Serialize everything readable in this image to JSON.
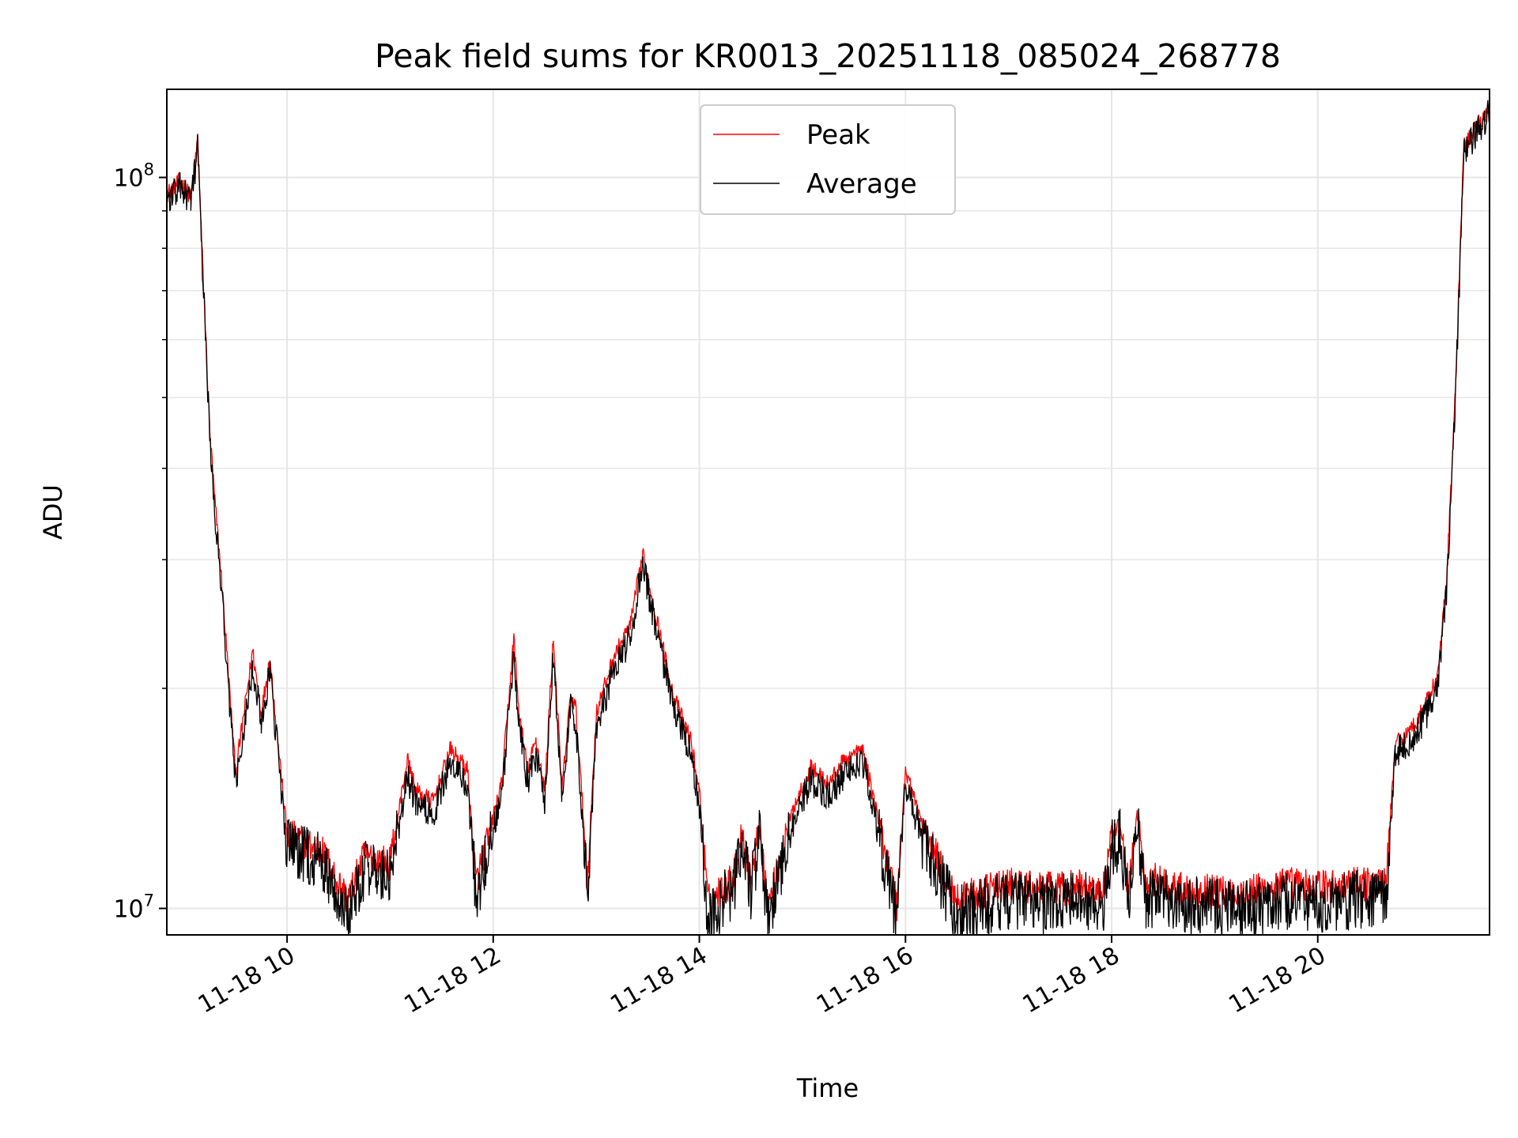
{
  "chart_data": {
    "type": "line",
    "title": "Peak field sums for KR0013_20251118_085024_268778",
    "xlabel": "Time",
    "ylabel": "ADU",
    "x_tick_labels": [
      "11-18 10",
      "11-18 12",
      "11-18 14",
      "11-18 16",
      "11-18 18",
      "11-18 20"
    ],
    "y_tick_labels": [
      {
        "label": "10",
        "exp": "8",
        "value": 100000000
      },
      {
        "label": "10",
        "exp": "7",
        "value": 10000000
      }
    ],
    "y_scale": "log",
    "ylim": [
      9200000,
      132000000
    ],
    "xlim": [
      "2025-11-18 08:50",
      "2025-11-18 21:40"
    ],
    "grid": true,
    "legend_position": "upper center",
    "series": [
      {
        "name": "Peak",
        "color": "#ff0000",
        "x": [
          "08:50",
          "08:58",
          "09:04",
          "09:08",
          "09:10",
          "09:15",
          "09:18",
          "09:22",
          "09:30",
          "09:40",
          "09:45",
          "09:50",
          "10:00",
          "10:20",
          "10:35",
          "10:37",
          "10:45",
          "11:00",
          "11:10",
          "11:15",
          "11:25",
          "11:35",
          "11:45",
          "11:50",
          "12:05",
          "12:12",
          "12:15",
          "12:20",
          "12:25",
          "12:30",
          "12:35",
          "12:40",
          "12:45",
          "12:48",
          "12:55",
          "13:00",
          "13:10",
          "13:20",
          "13:27",
          "13:35",
          "13:45",
          "13:55",
          "14:00",
          "14:05",
          "14:20",
          "14:25",
          "14:30",
          "14:35",
          "14:40",
          "14:55",
          "15:05",
          "15:15",
          "15:25",
          "15:35",
          "15:45",
          "15:50",
          "15:55",
          "16:00",
          "16:10",
          "16:20",
          "16:30",
          "16:45",
          "17:00",
          "17:15",
          "17:45",
          "17:55",
          "18:00",
          "18:05",
          "18:10",
          "18:15",
          "18:20",
          "18:25",
          "18:40",
          "19:15",
          "19:45",
          "20:00",
          "20:30",
          "20:40",
          "20:45",
          "20:50",
          "20:55",
          "21:00",
          "21:05",
          "21:10",
          "21:15",
          "21:20",
          "21:25",
          "21:40"
        ],
        "y": [
          95000000,
          99000000,
          94000000,
          113000000,
          85000000,
          45000000,
          36000000,
          28000000,
          15300000,
          22500000,
          18500000,
          22000000,
          12600000,
          12000000,
          10300000,
          10500000,
          11800000,
          11500000,
          16000000,
          14500000,
          14000000,
          16500000,
          15500000,
          10800000,
          14800000,
          23500000,
          18500000,
          15500000,
          17000000,
          14500000,
          23500000,
          14500000,
          19500000,
          18800000,
          11000000,
          18500000,
          22000000,
          24500000,
          30500000,
          25000000,
          19500000,
          17000000,
          14500000,
          10200000,
          11000000,
          12800000,
          11000000,
          13000000,
          10000000,
          13800000,
          15600000,
          14800000,
          16000000,
          16500000,
          13000000,
          11500000,
          10100000,
          15500000,
          13000000,
          11500000,
          10300000,
          10500000,
          10800000,
          10600000,
          10700000,
          10500000,
          12500000,
          13000000,
          10600000,
          13500000,
          10500000,
          11000000,
          10600000,
          10500000,
          10800000,
          10700000,
          10800000,
          11000000,
          16800000,
          17200000,
          17700000,
          18500000,
          19500000,
          21000000,
          28000000,
          50000000,
          110000000,
          125000000
        ]
      },
      {
        "name": "Average",
        "color": "#000000",
        "x": [
          "08:50",
          "08:58",
          "09:04",
          "09:08",
          "09:10",
          "09:15",
          "09:18",
          "09:22",
          "09:30",
          "09:40",
          "09:45",
          "09:50",
          "10:00",
          "10:20",
          "10:35",
          "10:37",
          "10:45",
          "11:00",
          "11:10",
          "11:15",
          "11:25",
          "11:35",
          "11:45",
          "11:50",
          "12:05",
          "12:12",
          "12:15",
          "12:20",
          "12:25",
          "12:30",
          "12:35",
          "12:40",
          "12:45",
          "12:48",
          "12:55",
          "13:00",
          "13:10",
          "13:20",
          "13:27",
          "13:35",
          "13:45",
          "13:55",
          "14:00",
          "14:05",
          "14:20",
          "14:25",
          "14:30",
          "14:35",
          "14:40",
          "14:55",
          "15:05",
          "15:15",
          "15:25",
          "15:35",
          "15:45",
          "15:50",
          "15:55",
          "16:00",
          "16:10",
          "16:20",
          "16:30",
          "16:45",
          "17:00",
          "17:15",
          "17:45",
          "17:55",
          "18:00",
          "18:05",
          "18:10",
          "18:15",
          "18:20",
          "18:25",
          "18:40",
          "19:15",
          "19:45",
          "20:00",
          "20:30",
          "20:40",
          "20:45",
          "20:50",
          "20:55",
          "21:00",
          "21:05",
          "21:10",
          "21:15",
          "21:20",
          "21:25",
          "21:40"
        ],
        "y": [
          93000000,
          97000000,
          92000000,
          110000000,
          83000000,
          44000000,
          35000000,
          27000000,
          14800000,
          21500000,
          18000000,
          21000000,
          12100000,
          11500000,
          9900000,
          10100000,
          11300000,
          11000000,
          15200000,
          13900000,
          13400000,
          15800000,
          14800000,
          10400000,
          14200000,
          22500000,
          17800000,
          14900000,
          16300000,
          14000000,
          22500000,
          14000000,
          18800000,
          18000000,
          10600000,
          17800000,
          21000000,
          23500000,
          29500000,
          24000000,
          18700000,
          16300000,
          13900000,
          9700000,
          10600000,
          12300000,
          10500000,
          12500000,
          9600000,
          13200000,
          15000000,
          14200000,
          15400000,
          15900000,
          12400000,
          11000000,
          9700000,
          14900000,
          12400000,
          11000000,
          9800000,
          10000000,
          10300000,
          10100000,
          10200000,
          10000000,
          12000000,
          12500000,
          10100000,
          13000000,
          10000000,
          10500000,
          10100000,
          9900000,
          10300000,
          10200000,
          10300000,
          10500000,
          16200000,
          16600000,
          17100000,
          17800000,
          18800000,
          20300000,
          27000000,
          48500000,
          108000000,
          123000000
        ]
      }
    ]
  }
}
